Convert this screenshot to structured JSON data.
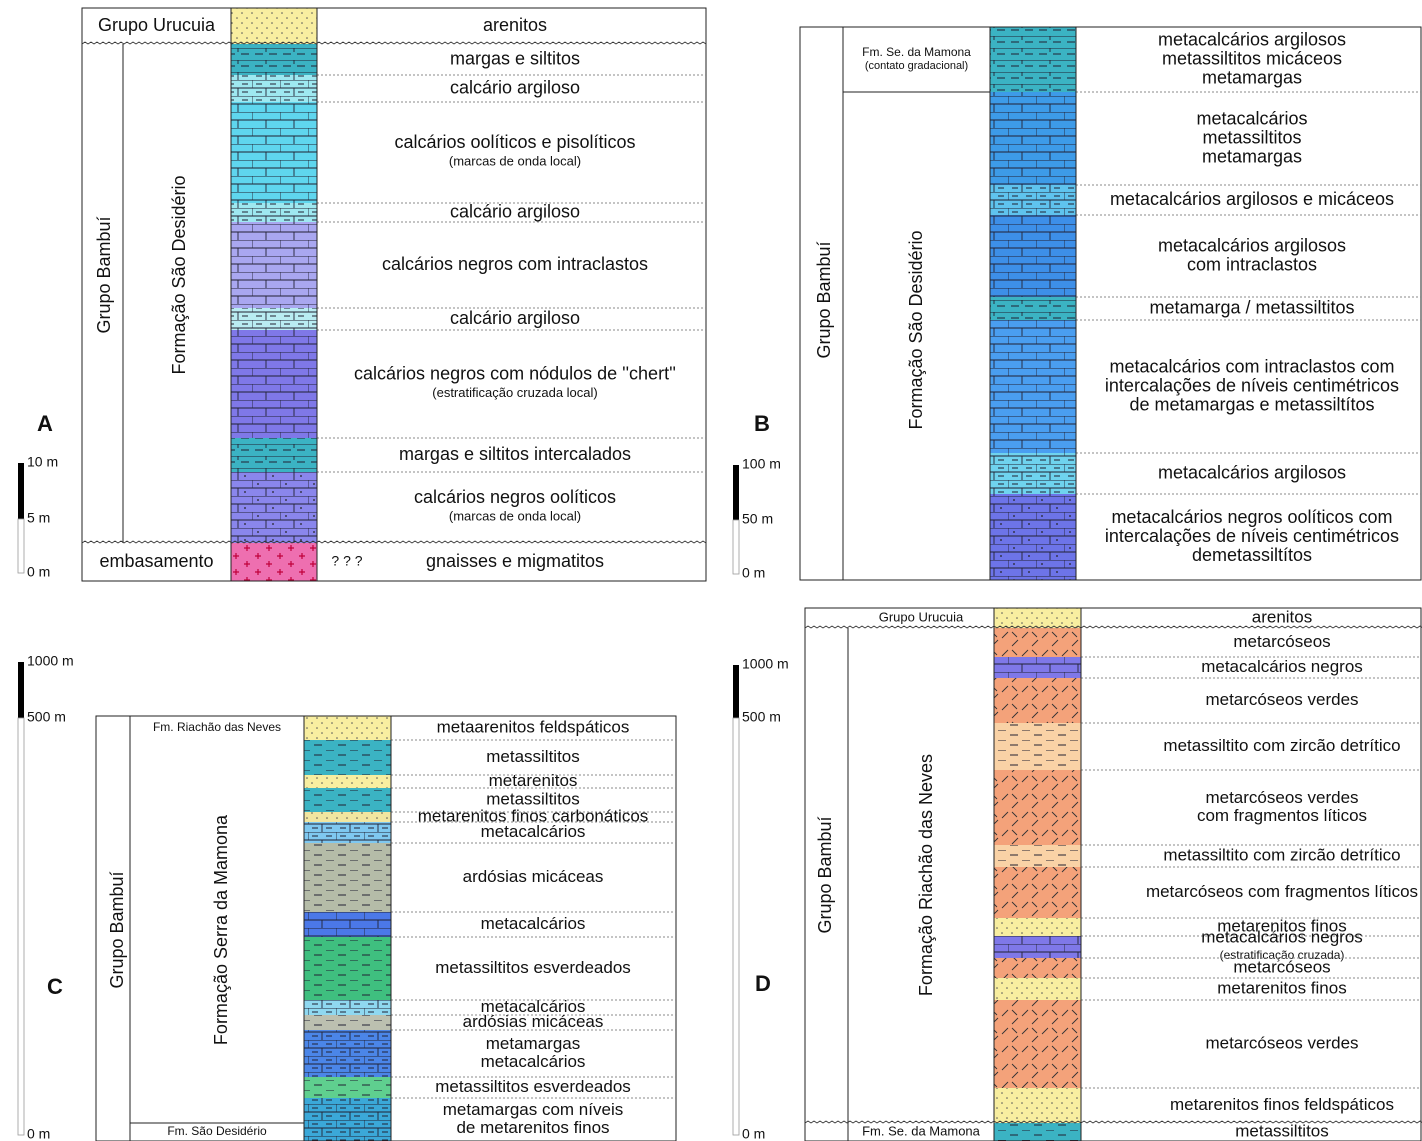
{
  "panels": [
    {
      "label": "A",
      "scale": [
        "10 m",
        "5 m",
        "0 m"
      ],
      "groups": [
        {
          "lines": [
            "Grupo Urucuia"
          ]
        },
        {
          "lines": [
            "Grupo Bambuí"
          ]
        },
        {
          "lines": [
            "Formação São Desidério"
          ]
        },
        {
          "lines": [
            "embasamento"
          ]
        }
      ],
      "note": "? ? ?",
      "layers": [
        {
          "lines": [
            "arenitos"
          ]
        },
        {
          "lines": [
            "margas e siltitos"
          ]
        },
        {
          "lines": [
            "calcário argiloso"
          ]
        },
        {
          "lines": [
            "calcários oolíticos e pisolíticos",
            "(marcas de onda local)"
          ]
        },
        {
          "lines": [
            "calcário argiloso"
          ]
        },
        {
          "lines": [
            "calcários negros com intraclastos"
          ]
        },
        {
          "lines": [
            "calcário argiloso"
          ]
        },
        {
          "lines": [
            "calcários negros com nódulos de ''chert''",
            "(estratificação cruzada local)"
          ]
        },
        {
          "lines": [
            "margas e siltitos intercalados"
          ]
        },
        {
          "lines": [
            "calcários negros oolíticos",
            "(marcas de onda local)"
          ]
        },
        {
          "lines": [
            "gnaisses e migmatitos"
          ]
        }
      ]
    },
    {
      "label": "B",
      "scale": [
        "100 m",
        "50 m",
        "0 m"
      ],
      "groups": [
        {
          "lines": [
            "Fm. Se. da Mamona",
            "(contato gradacional)"
          ]
        },
        {
          "lines": [
            "Grupo Bambuí"
          ]
        },
        {
          "lines": [
            "Formação São Desidério"
          ]
        }
      ],
      "layers": [
        {
          "lines": [
            "metacalcários argilosos",
            "metassiltitos micáceos",
            "metamargas"
          ]
        },
        {
          "lines": [
            "metacalcários",
            "metassiltitos",
            "metamargas"
          ]
        },
        {
          "lines": [
            "metacalcários argilosos e micáceos"
          ]
        },
        {
          "lines": [
            "metacalcários argilosos",
            "com intraclastos"
          ]
        },
        {
          "lines": [
            "metamarga / metassiltitos"
          ]
        },
        {
          "lines": [
            "metacalcários com intraclastos com",
            "intercalações de níveis centimétricos",
            "de metamargas e metassiltítos"
          ]
        },
        {
          "lines": [
            "metacalcários argilosos"
          ]
        },
        {
          "lines": [
            "metacalcários negros oolíticos com",
            "intercalações de níveis centimétricos",
            "demetassiltítos"
          ]
        }
      ]
    },
    {
      "label": "C",
      "scale": [
        "1000 m",
        "500 m",
        "0 m"
      ],
      "groups": [
        {
          "lines": [
            "Fm. Riachão das Neves"
          ]
        },
        {
          "lines": [
            "Grupo Bambuí"
          ]
        },
        {
          "lines": [
            "Formação Serra da Mamona"
          ]
        },
        {
          "lines": [
            "Fm. São Desidério"
          ]
        }
      ],
      "layers": [
        {
          "lines": [
            "metaarenitos feldspáticos"
          ]
        },
        {
          "lines": [
            "metassiltitos"
          ]
        },
        {
          "lines": [
            "metarenitos"
          ]
        },
        {
          "lines": [
            "metassiltitos"
          ]
        },
        {
          "lines": [
            "metarenitos finos carbonáticos"
          ]
        },
        {
          "lines": [
            "metacalcários"
          ]
        },
        {
          "lines": [
            "ardósias micáceas"
          ]
        },
        {
          "lines": [
            "metacalcários"
          ]
        },
        {
          "lines": [
            "metassiltitos esverdeados"
          ]
        },
        {
          "lines": [
            "metacalcários"
          ]
        },
        {
          "lines": [
            "ardósias micáceas"
          ]
        },
        {
          "lines": [
            "metamargas",
            "metacalcários"
          ]
        },
        {
          "lines": [
            "metassiltitos esverdeados"
          ]
        },
        {
          "lines": [
            "metamargas com níveis",
            "de metarenitos finos"
          ]
        }
      ]
    },
    {
      "label": "D",
      "scale": [
        "1000 m",
        "500 m",
        "0 m"
      ],
      "groups": [
        {
          "lines": [
            "Grupo Urucuia"
          ]
        },
        {
          "lines": [
            "Grupo Bambuí"
          ]
        },
        {
          "lines": [
            "Formação Riachão das Neves"
          ]
        },
        {
          "lines": [
            "Fm. Se. da Mamona"
          ]
        }
      ],
      "layers": [
        {
          "lines": [
            "arenitos"
          ]
        },
        {
          "lines": [
            "metarcóseos"
          ]
        },
        {
          "lines": [
            "metacalcários negros"
          ]
        },
        {
          "lines": [
            "metarcóseos verdes"
          ]
        },
        {
          "lines": [
            "metassiltito com zircão detrítico"
          ]
        },
        {
          "lines": [
            "metarcóseos verdes",
            "com fragmentos líticos"
          ]
        },
        {
          "lines": [
            "metassiltito com zircão detrítico"
          ]
        },
        {
          "lines": [
            "metarcóseos com fragmentos líticos"
          ]
        },
        {
          "lines": [
            "metarenitos finos"
          ]
        },
        {
          "lines": [
            "metacalcários negros",
            "(estratificação cruzada)"
          ]
        },
        {
          "lines": [
            "metarcóseos"
          ]
        },
        {
          "lines": [
            "metarenitos finos"
          ]
        },
        {
          "lines": [
            "metarcóseos verdes"
          ]
        },
        {
          "lines": [
            "metarenitos finos feldspáticos"
          ]
        },
        {
          "lines": [
            "metassiltitos"
          ]
        }
      ]
    }
  ]
}
